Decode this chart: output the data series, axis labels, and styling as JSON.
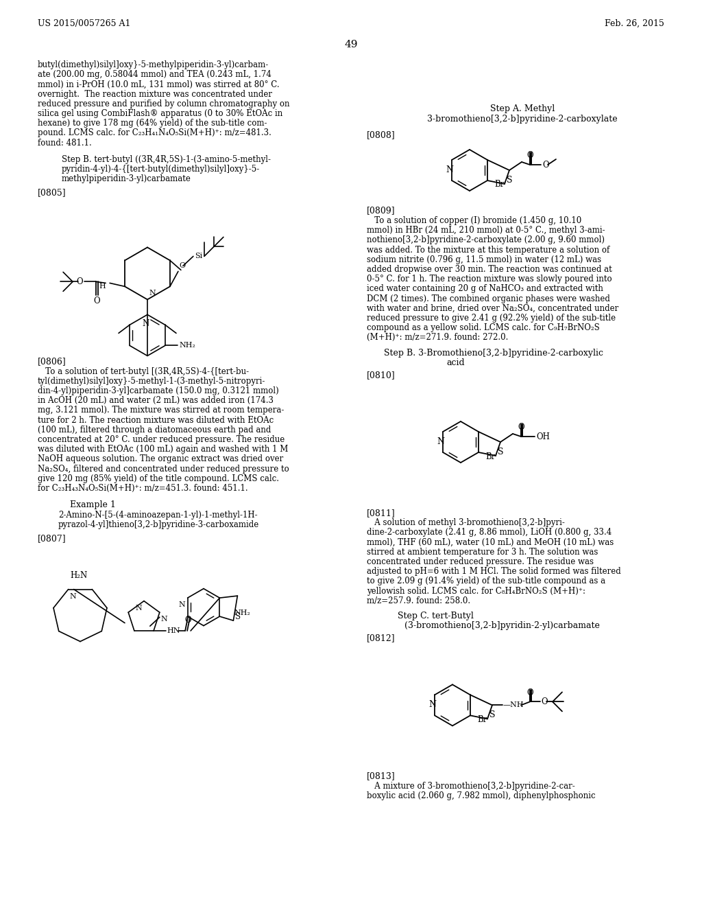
{
  "bg": "#ffffff",
  "header_left": "US 2015/0057265 A1",
  "header_right": "Feb. 26, 2015",
  "page_num": "49"
}
